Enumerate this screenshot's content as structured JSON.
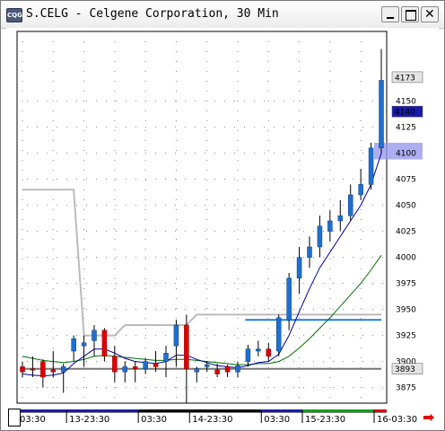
{
  "window": {
    "title": "S.CELG - Celgene Corporation, 30 Min",
    "icon": "chart-app-icon",
    "close_glyph": "✕"
  },
  "colors": {
    "up_candle": "#1f6fd0",
    "down_candle": "#e00000",
    "fast_ma": "#0000a0",
    "slow_ma": "#007000",
    "gray_line": "#bbbbbb",
    "level_blue": "#1f7fe0",
    "level_gray": "#777777",
    "highlight": "#9999ee",
    "grid_dot": "#888888"
  },
  "chart_data": {
    "type": "candlestick",
    "ylim": [
      3860,
      4210
    ],
    "y_ticks": [
      4150,
      4125,
      4100,
      4075,
      4050,
      4025,
      4000,
      3975,
      3950,
      3925,
      3900,
      3875
    ],
    "price_labels": [
      {
        "value": 4173,
        "style": "gray"
      },
      {
        "value": 4140,
        "style": "blue"
      },
      {
        "value": 3893,
        "style": "gray"
      }
    ],
    "highlight_band": [
      4094,
      4110
    ],
    "level_lines": [
      {
        "name": "blue-level",
        "value": 3940,
        "from_index": 22,
        "to_index": 35
      },
      {
        "name": "gray-level",
        "value": 3893,
        "from_index": 0,
        "to_index": 35
      }
    ],
    "x_labels": [
      "03:30",
      "13-23:30",
      "03:30",
      "14-23:30",
      "03:30",
      "15-23:30",
      "16-03:30"
    ],
    "candles": [
      {
        "o": 3895,
        "h": 3900,
        "l": 3885,
        "c": 3890
      },
      {
        "o": 3893,
        "h": 3905,
        "l": 3885,
        "c": 3892
      },
      {
        "o": 3900,
        "h": 3902,
        "l": 3875,
        "c": 3885
      },
      {
        "o": 3892,
        "h": 3910,
        "l": 3885,
        "c": 3890
      },
      {
        "o": 3890,
        "h": 3898,
        "l": 3870,
        "c": 3895
      },
      {
        "o": 3910,
        "h": 3925,
        "l": 3900,
        "c": 3922
      },
      {
        "o": 3915,
        "h": 3925,
        "l": 3895,
        "c": 3918
      },
      {
        "o": 3920,
        "h": 3935,
        "l": 3905,
        "c": 3930
      },
      {
        "o": 3930,
        "h": 3932,
        "l": 3900,
        "c": 3905
      },
      {
        "o": 3905,
        "h": 3915,
        "l": 3880,
        "c": 3890
      },
      {
        "o": 3890,
        "h": 3900,
        "l": 3880,
        "c": 3895
      },
      {
        "o": 3895,
        "h": 3900,
        "l": 3880,
        "c": 3893
      },
      {
        "o": 3893,
        "h": 3903,
        "l": 3888,
        "c": 3900
      },
      {
        "o": 3898,
        "h": 3910,
        "l": 3890,
        "c": 3895
      },
      {
        "o": 3900,
        "h": 3915,
        "l": 3885,
        "c": 3908
      },
      {
        "o": 3915,
        "h": 3940,
        "l": 3895,
        "c": 3935
      },
      {
        "o": 3935,
        "h": 3945,
        "l": 3860,
        "c": 3893
      },
      {
        "o": 3890,
        "h": 3895,
        "l": 3880,
        "c": 3893
      },
      {
        "o": 3895,
        "h": 3900,
        "l": 3890,
        "c": 3897
      },
      {
        "o": 3892,
        "h": 3898,
        "l": 3885,
        "c": 3888
      },
      {
        "o": 3895,
        "h": 3897,
        "l": 3885,
        "c": 3890
      },
      {
        "o": 3890,
        "h": 3900,
        "l": 3885,
        "c": 3896
      },
      {
        "o": 3900,
        "h": 3916,
        "l": 3895,
        "c": 3912
      },
      {
        "o": 3910,
        "h": 3920,
        "l": 3905,
        "c": 3912
      },
      {
        "o": 3912,
        "h": 3918,
        "l": 3900,
        "c": 3905
      },
      {
        "o": 3910,
        "h": 3945,
        "l": 3905,
        "c": 3942
      },
      {
        "o": 3940,
        "h": 3985,
        "l": 3930,
        "c": 3980
      },
      {
        "o": 3980,
        "h": 4010,
        "l": 3965,
        "c": 4000
      },
      {
        "o": 4000,
        "h": 4020,
        "l": 3990,
        "c": 4010
      },
      {
        "o": 4010,
        "h": 4040,
        "l": 4000,
        "c": 4030
      },
      {
        "o": 4025,
        "h": 4045,
        "l": 4015,
        "c": 4035
      },
      {
        "o": 4035,
        "h": 4055,
        "l": 4025,
        "c": 4040
      },
      {
        "o": 4040,
        "h": 4070,
        "l": 4035,
        "c": 4060
      },
      {
        "o": 4060,
        "h": 4085,
        "l": 4055,
        "c": 4070
      },
      {
        "o": 4070,
        "h": 4110,
        "l": 4065,
        "c": 4105
      },
      {
        "o": 4105,
        "h": 4200,
        "l": 4100,
        "c": 4170
      }
    ],
    "fast_ma": [
      3888,
      3887,
      3886,
      3887,
      3889,
      3898,
      3905,
      3912,
      3912,
      3908,
      3903,
      3900,
      3899,
      3898,
      3900,
      3906,
      3906,
      3902,
      3899,
      3896,
      3895,
      3894,
      3896,
      3899,
      3900,
      3907,
      3925,
      3948,
      3970,
      3990,
      4005,
      4020,
      4035,
      4050,
      4070,
      4100
    ],
    "slow_ma": [
      3905,
      3903,
      3901,
      3900,
      3899,
      3900,
      3902,
      3905,
      3906,
      3905,
      3904,
      3903,
      3902,
      3901,
      3901,
      3902,
      3902,
      3901,
      3900,
      3899,
      3898,
      3897,
      3897,
      3898,
      3898,
      3900,
      3905,
      3913,
      3922,
      3932,
      3942,
      3953,
      3964,
      3975,
      3988,
      4002
    ],
    "gray_line": [
      4065,
      4065,
      4065,
      4065,
      4065,
      4065,
      3925,
      3925,
      3925,
      3925,
      3935,
      3935,
      3935,
      3935,
      3935,
      3935,
      3935,
      3945,
      3945,
      3945,
      3945,
      3945,
      3945,
      3945,
      3945,
      3945,
      3945,
      3945,
      3945,
      3945,
      3945,
      3945,
      3945,
      3945,
      3945,
      3945
    ]
  }
}
